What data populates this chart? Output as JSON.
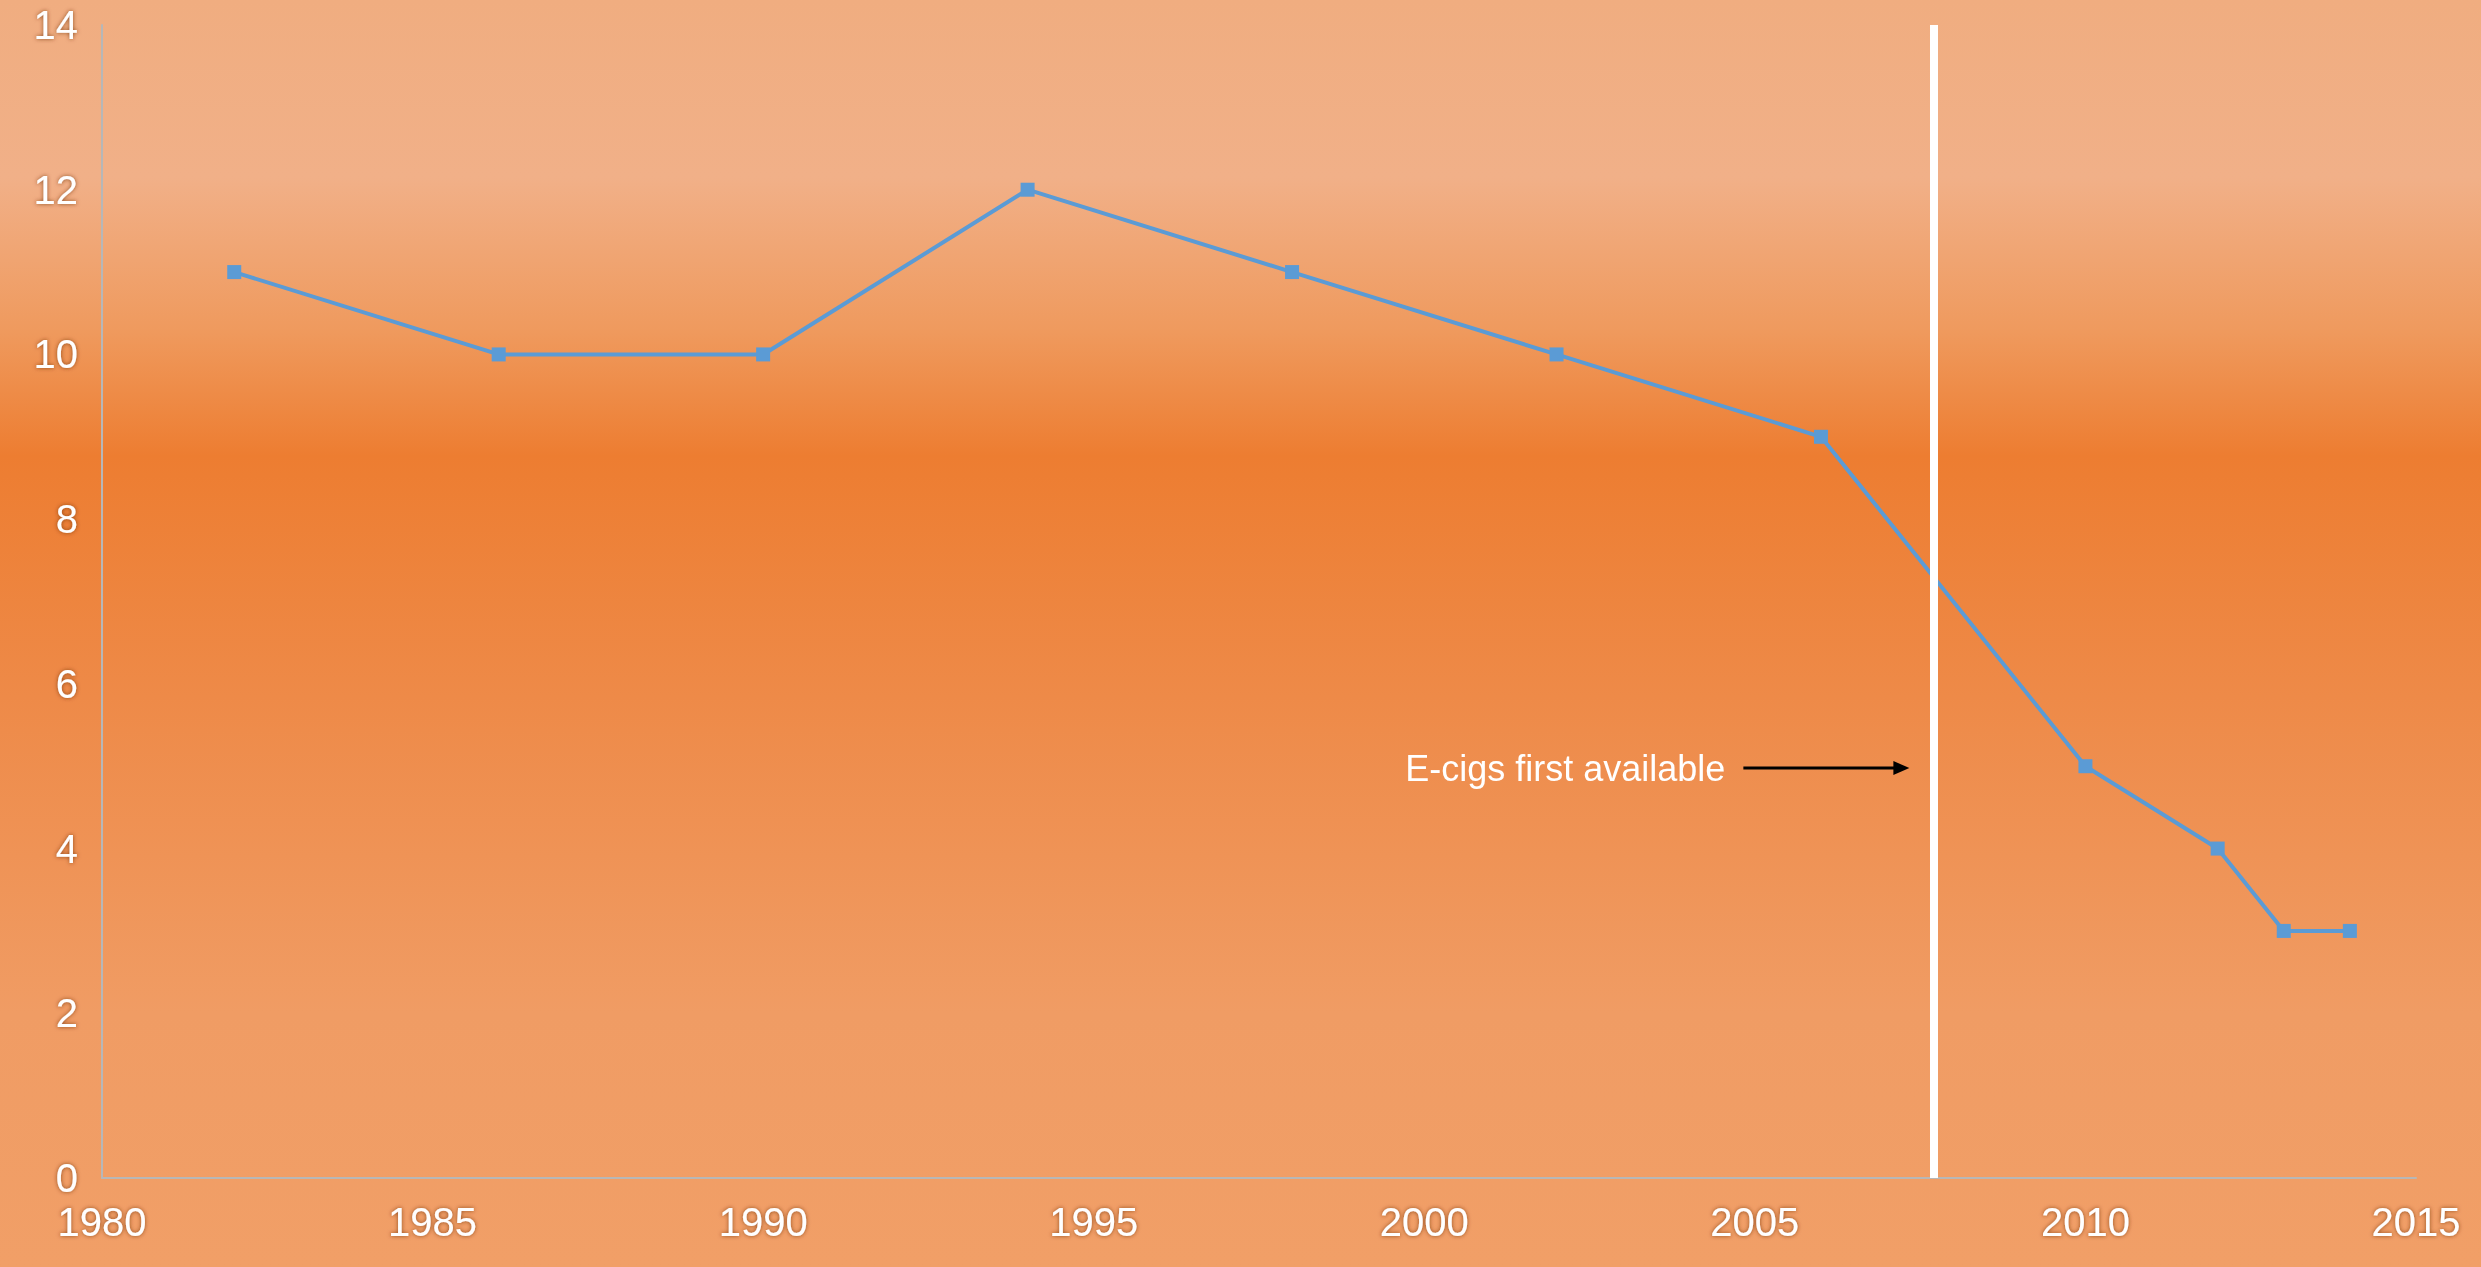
{
  "chart_data": {
    "type": "line",
    "x": [
      1982,
      1986,
      1990,
      1994,
      1998,
      2002,
      2006,
      2010,
      2012,
      2013,
      2014
    ],
    "series": [
      {
        "color": "#5b9bd5",
        "values": [
          11,
          10,
          10,
          12,
          11,
          10,
          9,
          5,
          4,
          3,
          3
        ]
      }
    ],
    "xlim": [
      1980,
      2015
    ],
    "xticks": [
      1980,
      1985,
      1990,
      1995,
      2000,
      2005,
      2010,
      2015
    ],
    "ylim": [
      0,
      14
    ],
    "yticks": [
      0,
      2,
      4,
      6,
      8,
      10,
      12,
      14
    ],
    "grid": false,
    "marker": "square",
    "line_style": "solid",
    "ref_lines": [
      {
        "axis": "x",
        "value": 2007.7,
        "color": "#ffffff",
        "line_style": "solid"
      }
    ],
    "annotations": [
      "E-cigs first available"
    ]
  }
}
